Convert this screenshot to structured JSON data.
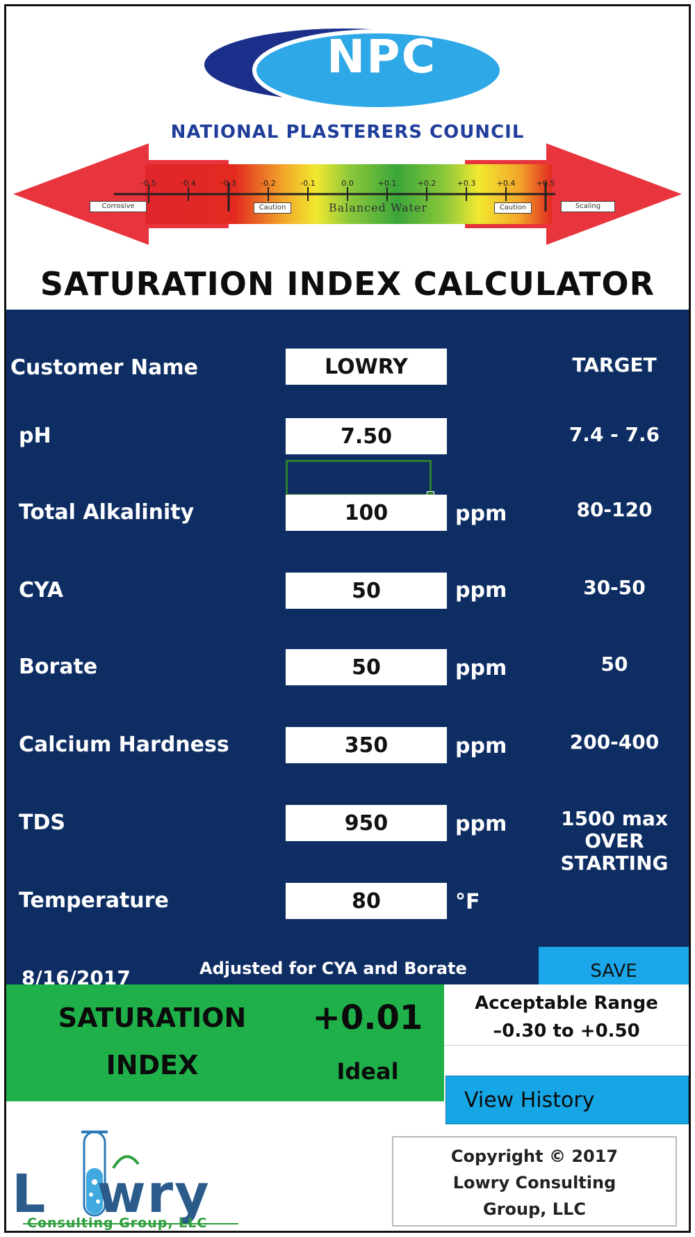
{
  "header": {
    "logo_text": "NPC",
    "organization": "NATIONAL PLASTERERS COUNCIL",
    "scale": {
      "ticks": [
        "-0.5",
        "-0.4",
        "-0.3",
        "-0.2",
        "-0.1",
        "0.0",
        "+0.1",
        "+0.2",
        "+0.3",
        "+0.4",
        "+0.5"
      ],
      "left_label": "Corrosive",
      "caution_left": "Caution",
      "center_label": "Balanced Water",
      "caution_right": "Caution",
      "right_label": "Scaling"
    },
    "title": "SATURATION INDEX CALCULATOR"
  },
  "form": {
    "customer_label": "Customer Name",
    "customer_value": "LOWRY",
    "target_header": "TARGET",
    "fields": [
      {
        "label": "pH",
        "value": "7.50",
        "unit": "",
        "target": "7.4 - 7.6"
      },
      {
        "label": "Total Alkalinity",
        "value": "100",
        "unit": "ppm",
        "target": "80-120"
      },
      {
        "label": "CYA",
        "value": "50",
        "unit": "ppm",
        "target": "30-50"
      },
      {
        "label": "Borate",
        "value": "50",
        "unit": "ppm",
        "target": "50"
      },
      {
        "label": "Calcium Hardness",
        "value": "350",
        "unit": "ppm",
        "target": "200-400"
      },
      {
        "label": "TDS",
        "value": "950",
        "unit": "ppm",
        "target": "1500 max"
      },
      {
        "label": "Temperature",
        "value": "80",
        "unit": "°F",
        "target": ""
      }
    ],
    "tds_note_line1": "OVER",
    "tds_note_line2": "STARTING",
    "date": "8/16/2017",
    "adjusted_note": "Adjusted for CYA and Borate",
    "save_label": "SAVE"
  },
  "result": {
    "label_line1": "SATURATION",
    "label_line2": "INDEX",
    "value": "+0.01",
    "status": "Ideal",
    "range_title": "Acceptable Range",
    "range_value": "–0.30 to +0.50",
    "history_label": "View History"
  },
  "footer": {
    "logo_word_l": "L",
    "logo_word_rest": "wry",
    "logo_sub": "Consulting Group, LLC",
    "copyright_line1": "Copyright © 2017",
    "copyright_line2": "Lowry Consulting",
    "copyright_line3": "Group, LLC"
  },
  "colors": {
    "form_background": "#0e2e63",
    "result_green": "#1fb04a",
    "button_blue": "#1aa6e8",
    "logo_blue": "#1f3d9a"
  }
}
